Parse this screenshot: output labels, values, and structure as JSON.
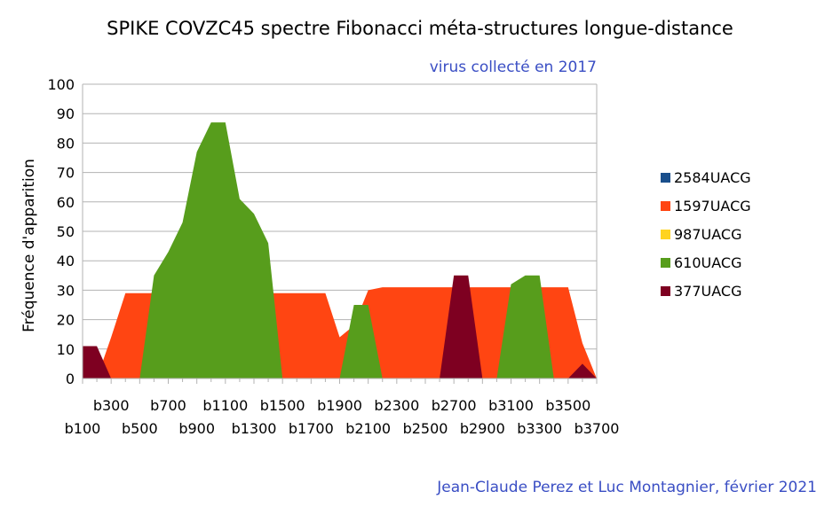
{
  "header": {
    "title": "SPIKE COVZC45 spectre Fibonacci méta-structures longue-distance",
    "subtitle": "virus collecté en 2017"
  },
  "footer": {
    "credit": "Jean-Claude Perez et Luc Montagnier, février 2021"
  },
  "chart_data": {
    "type": "area",
    "title": "SPIKE COVZC45 spectre Fibonacci méta-structures longue-distance",
    "subtitle": "virus collecté en 2017",
    "ylabel": "Fréquence d'apparition",
    "xlabel": "",
    "ylim": [
      0,
      100
    ],
    "y_ticks": [
      0,
      10,
      20,
      30,
      40,
      50,
      60,
      70,
      80,
      90,
      100
    ],
    "grid": true,
    "legend_position": "right",
    "categories": [
      "b100",
      "b200",
      "b300",
      "b400",
      "b500",
      "b600",
      "b700",
      "b800",
      "b900",
      "b1000",
      "b1100",
      "b1200",
      "b1300",
      "b1400",
      "b1500",
      "b1600",
      "b1700",
      "b1800",
      "b1900",
      "b2000",
      "b2100",
      "b2200",
      "b2300",
      "b2400",
      "b2500",
      "b2600",
      "b2700",
      "b2800",
      "b2900",
      "b3000",
      "b3100",
      "b3200",
      "b3300",
      "b3400",
      "b3500",
      "b3600",
      "b3700"
    ],
    "visible_tick_labels": [
      "b100",
      "b300",
      "b500",
      "b700",
      "b900",
      "b1100",
      "b1300",
      "b1500",
      "b1700",
      "b1900",
      "b2100",
      "b2300",
      "b2500",
      "b2700",
      "b2900",
      "b3100",
      "b3300",
      "b3500",
      "b3700"
    ],
    "series": [
      {
        "name": "2584UACG",
        "color": "#1a4f8c",
        "values": [
          0,
          0,
          0,
          0,
          0,
          0,
          0,
          0,
          0,
          0,
          0,
          0,
          0,
          0,
          0,
          0,
          0,
          0,
          0,
          0,
          0,
          0,
          0,
          0,
          0,
          0,
          0,
          0,
          0,
          0,
          0,
          0,
          0,
          0,
          0,
          0,
          0
        ]
      },
      {
        "name": "1597UACG",
        "color": "#ff4512",
        "values": [
          0,
          0,
          14,
          29,
          29,
          29,
          29,
          29,
          29,
          29,
          29,
          29,
          29,
          29,
          29,
          29,
          29,
          29,
          14,
          18,
          30,
          31,
          31,
          31,
          31,
          31,
          31,
          31,
          31,
          31,
          31,
          31,
          31,
          31,
          31,
          12,
          0
        ]
      },
      {
        "name": "987UACG",
        "color": "#ffd320",
        "values": [
          2,
          2,
          0,
          0,
          0,
          0,
          0,
          0,
          0,
          0,
          0,
          0,
          0,
          0,
          0,
          0,
          0,
          0,
          0,
          0,
          0,
          0,
          0,
          0,
          0,
          0,
          0,
          0,
          0,
          0,
          0,
          0,
          0,
          0,
          0,
          0,
          0
        ]
      },
      {
        "name": "610UACG",
        "color": "#579d1c",
        "values": [
          0,
          0,
          0,
          0,
          0,
          35,
          43,
          53,
          77,
          87,
          87,
          61,
          56,
          46,
          0,
          0,
          0,
          0,
          0,
          25,
          25,
          0,
          0,
          0,
          0,
          0,
          0,
          0,
          0,
          0,
          32,
          35,
          35,
          0,
          0,
          0,
          0
        ]
      },
      {
        "name": "377UACG",
        "color": "#7e0021",
        "values": [
          11,
          11,
          0,
          0,
          0,
          0,
          0,
          0,
          0,
          0,
          0,
          0,
          0,
          0,
          0,
          0,
          0,
          0,
          0,
          0,
          0,
          0,
          0,
          0,
          0,
          0,
          35,
          35,
          0,
          0,
          0,
          0,
          0,
          0,
          0,
          5,
          0
        ]
      }
    ]
  }
}
